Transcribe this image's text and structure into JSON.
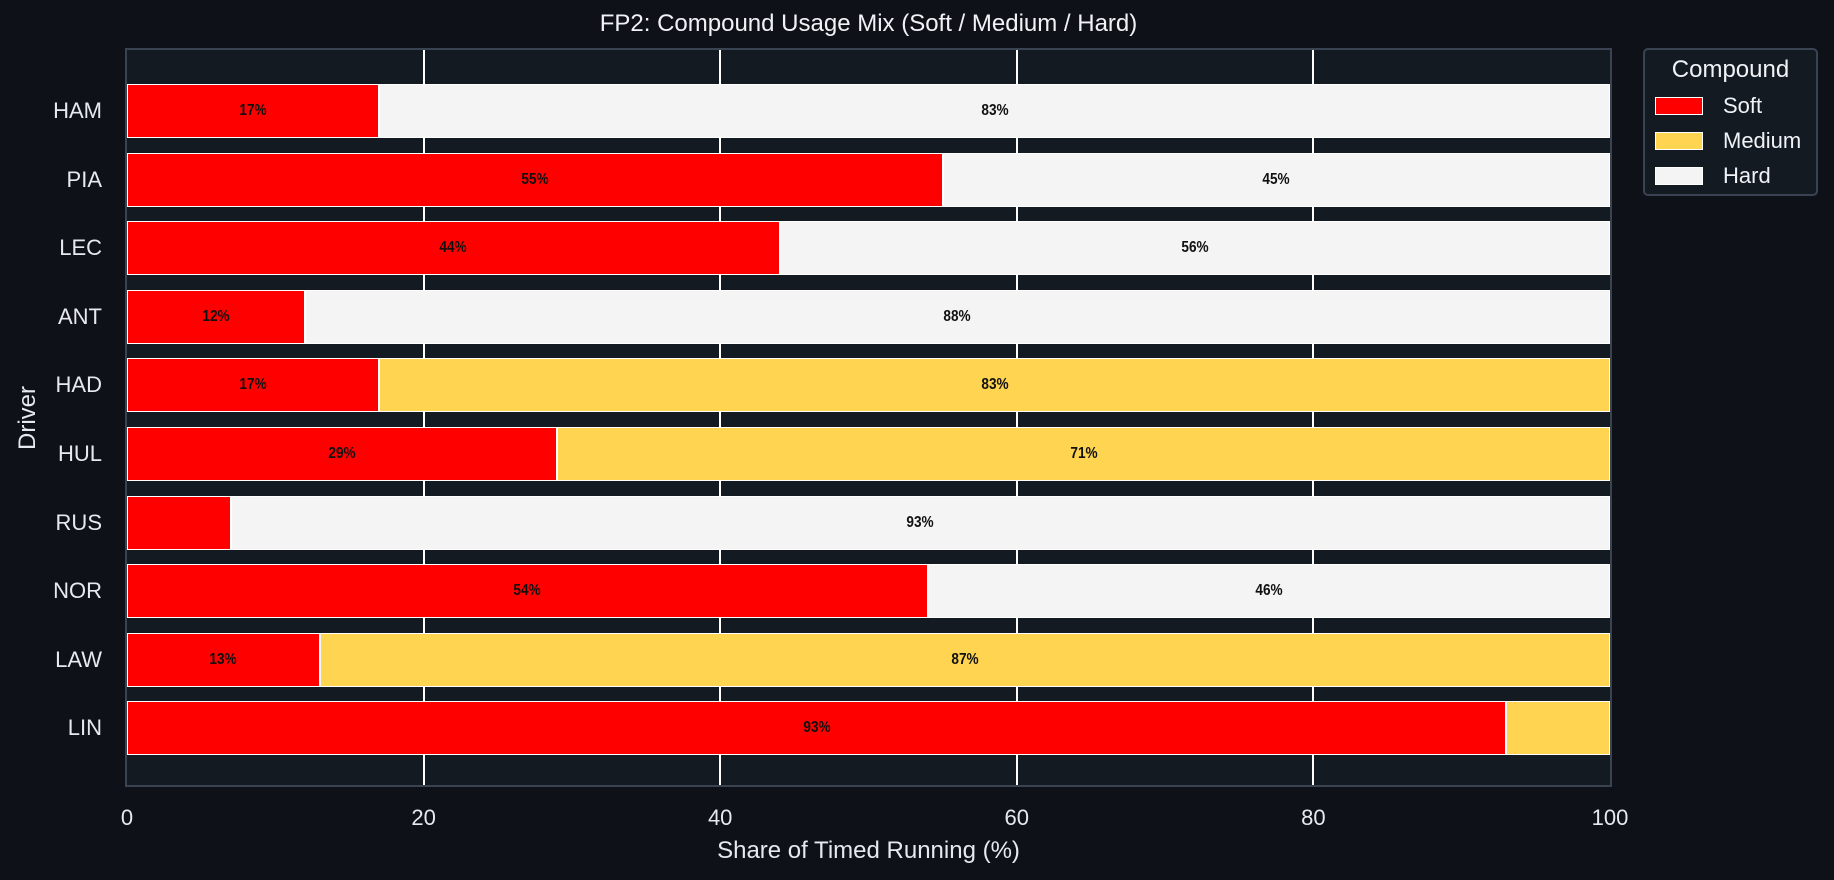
{
  "chart_data": {
    "type": "bar",
    "orientation": "horizontal",
    "stacked": true,
    "title": "FP2: Compound Usage Mix (Soft / Medium / Hard)",
    "xlabel": "Share of Timed Running (%)",
    "ylabel": "Driver",
    "xlim": [
      0,
      100
    ],
    "xticks": [
      0,
      20,
      40,
      60,
      80,
      100
    ],
    "grid": true,
    "legend": {
      "title": "Compound",
      "position": "upper right outside",
      "entries": [
        "Soft",
        "Medium",
        "Hard"
      ]
    },
    "categories": [
      "HAM",
      "PIA",
      "LEC",
      "ANT",
      "HAD",
      "HUL",
      "RUS",
      "NOR",
      "LAW",
      "LIN"
    ],
    "series": [
      {
        "name": "Soft",
        "color": "#ff0000",
        "values": [
          17,
          55,
          44,
          12,
          17,
          29,
          7,
          54,
          13,
          93
        ]
      },
      {
        "name": "Medium",
        "color": "#ffd451",
        "values": [
          0,
          0,
          0,
          0,
          83,
          71,
          0,
          0,
          87,
          7
        ]
      },
      {
        "name": "Hard",
        "color": "#f4f4f4",
        "values": [
          83,
          45,
          56,
          88,
          0,
          0,
          93,
          46,
          0,
          0
        ]
      }
    ],
    "data_labels": {
      "HAM": [
        "17%",
        "",
        "83%"
      ],
      "PIA": [
        "55%",
        "",
        "45%"
      ],
      "LEC": [
        "44%",
        "",
        "56%"
      ],
      "ANT": [
        "12%",
        "",
        "88%"
      ],
      "HAD": [
        "17%",
        "83%",
        ""
      ],
      "HUL": [
        "29%",
        "71%",
        ""
      ],
      "RUS": [
        "",
        "",
        "93%"
      ],
      "NOR": [
        "54%",
        "",
        "46%"
      ],
      "LAW": [
        "13%",
        "87%",
        ""
      ],
      "LIN": [
        "93%",
        "",
        ""
      ]
    }
  },
  "colors": {
    "background": "#0e1117",
    "plot_bg": "#131a22",
    "soft": "#ff0000",
    "medium": "#ffd451",
    "hard": "#f4f4f4"
  }
}
